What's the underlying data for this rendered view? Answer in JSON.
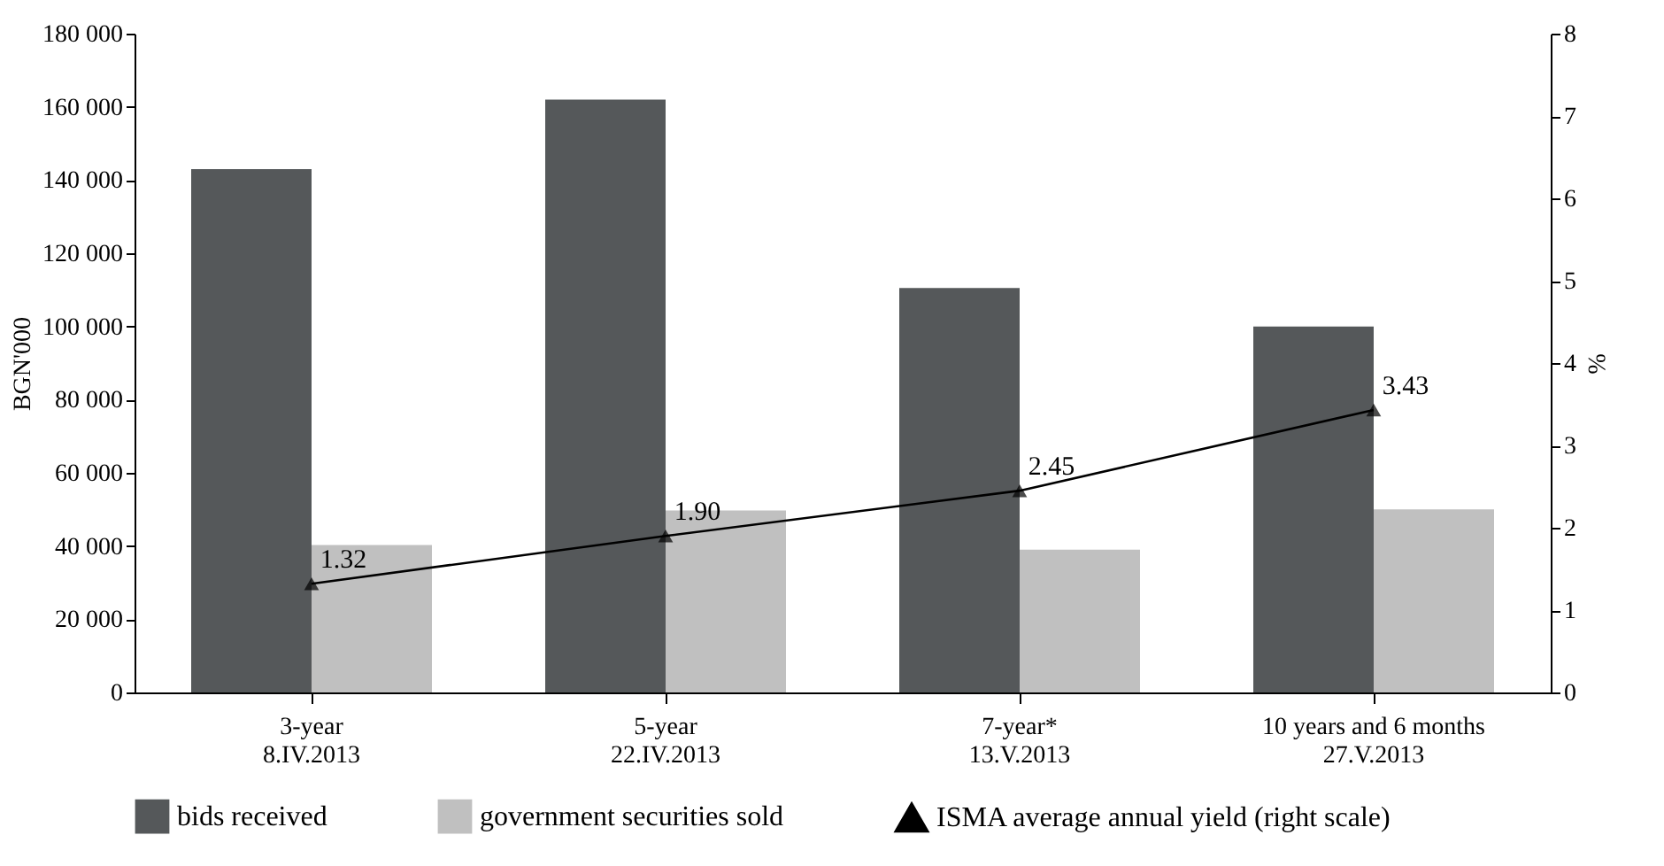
{
  "chart_data": {
    "type": "bar",
    "ylabel": "BGN'000",
    "y2label": "%",
    "categories": [
      "3-year\n8.IV.2013",
      "5-year\n22.IV.2013",
      "7-year*\n13.V.2013",
      "10 years and 6 months\n27.V.2013"
    ],
    "series": [
      {
        "name": "bids received",
        "color": "#55585a",
        "values": [
          143000,
          162000,
          110500,
          100000
        ]
      },
      {
        "name": "government securities sold",
        "color": "#c0c0c0",
        "values": [
          40300,
          49700,
          39000,
          50000
        ]
      },
      {
        "name": "ISMA average annual yield (right scale)",
        "type": "line",
        "axis": "y2",
        "color": "#000000",
        "marker": "triangle",
        "values": [
          1.32,
          1.9,
          2.45,
          3.43
        ],
        "value_labels": [
          "1.32",
          "1.90",
          "2.45",
          "3.43"
        ]
      }
    ],
    "ylim": [
      0,
      180000
    ],
    "yticks": [
      0,
      {
        "value": 20000,
        "label": "20 000"
      },
      {
        "value": 40000,
        "label": "40 000"
      },
      {
        "value": 60000,
        "label": "60 000"
      },
      {
        "value": 80000,
        "label": "80 000"
      },
      {
        "value": 100000,
        "label": "100 000"
      },
      {
        "value": 120000,
        "label": "120 000"
      },
      {
        "value": 140000,
        "label": "140 000"
      },
      {
        "value": 160000,
        "label": "160 000"
      },
      {
        "value": 180000,
        "label": "180 000"
      }
    ],
    "y2lim": [
      0,
      8
    ],
    "y2ticks": [
      0,
      1,
      2,
      3,
      4,
      5,
      6,
      7,
      8
    ],
    "grid": false,
    "legend": "bottom"
  }
}
